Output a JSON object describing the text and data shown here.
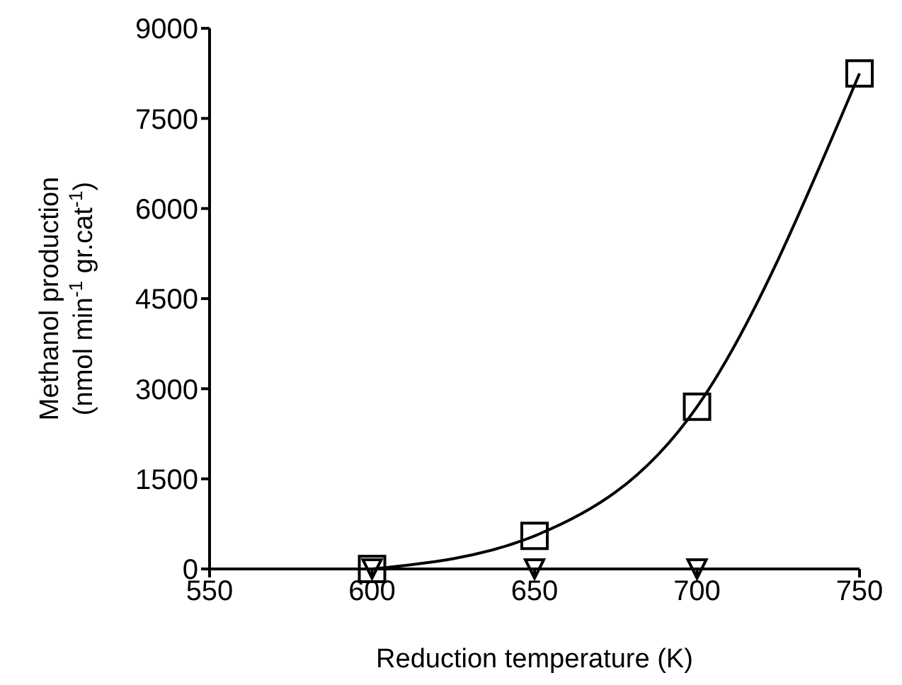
{
  "chart_data": {
    "type": "line",
    "xlabel": "Reduction temperature (K)",
    "ylabel": "Methanol production\n(nmol min$^{-1}$ gr.cat$^{-1}$)",
    "xlim": [
      550,
      750
    ],
    "xticks": [
      550,
      600,
      650,
      700,
      750
    ],
    "ylim": [
      0,
      9000
    ],
    "yticks": [
      0,
      1500,
      3000,
      4500,
      6000,
      7500,
      9000
    ],
    "grid": false,
    "series": [
      {
        "type": "scatter",
        "marker": "triangle",
        "color": "#000000",
        "x": [
          600,
          650,
          700
        ],
        "values": [
          0,
          0,
          0
        ]
      },
      {
        "marker": "square",
        "color": "#000000",
        "x": [
          600,
          650,
          700,
          750
        ],
        "values": [
          0,
          550,
          2700,
          8250
        ]
      }
    ]
  }
}
